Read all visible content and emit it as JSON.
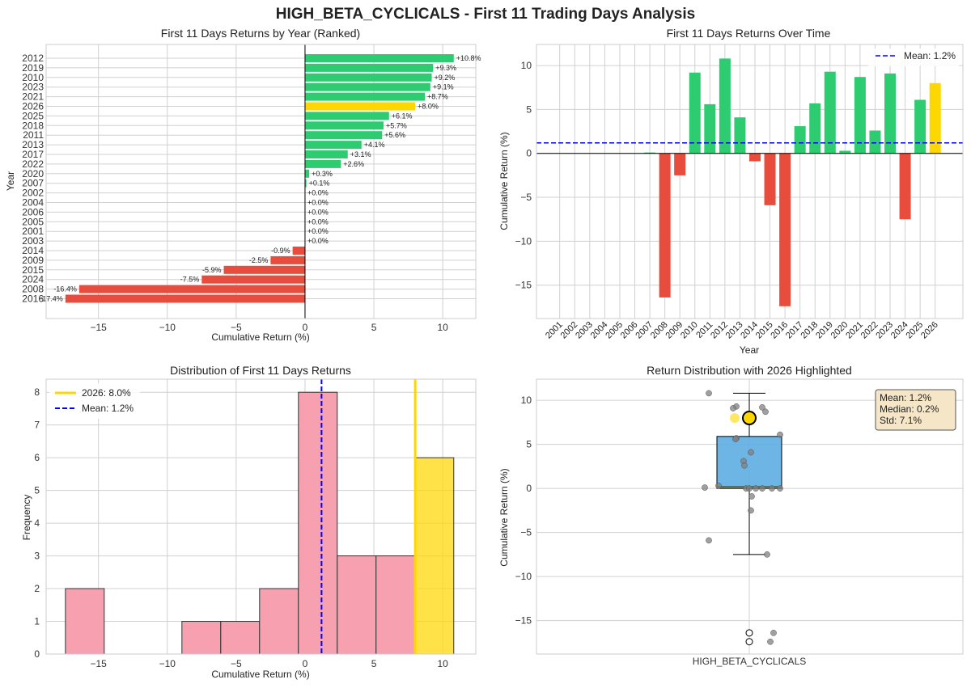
{
  "title": "HIGH_BETA_CYCLICALS - First 11 Trading Days Analysis",
  "colors": {
    "positive": "#2ecc71",
    "negative": "#e74c3c",
    "highlight": "#ffd700",
    "mean_line": "#0000ff",
    "hist_bar": "#f7a0b0",
    "box": "#5dade2",
    "scatter": "#808080",
    "grid": "#d0d0d0"
  },
  "chart_data": [
    {
      "type": "bar",
      "orientation": "horizontal",
      "title": "First 11 Days Returns by Year (Ranked)",
      "xlabel": "Cumulative Return (%)",
      "ylabel": "Year",
      "xlim": [
        -18.8,
        12.4
      ],
      "xticks": [
        -15,
        -10,
        -5,
        0,
        5,
        10
      ],
      "highlight_year": "2026",
      "categories": [
        "2012",
        "2019",
        "2010",
        "2023",
        "2021",
        "2026",
        "2025",
        "2018",
        "2011",
        "2013",
        "2017",
        "2022",
        "2020",
        "2007",
        "2002",
        "2004",
        "2006",
        "2005",
        "2001",
        "2003",
        "2014",
        "2009",
        "2015",
        "2024",
        "2008",
        "2016"
      ],
      "values": [
        10.8,
        9.3,
        9.2,
        9.1,
        8.7,
        8.0,
        6.1,
        5.7,
        5.6,
        4.1,
        3.1,
        2.6,
        0.3,
        0.1,
        0.0,
        0.0,
        0.0,
        0.0,
        0.0,
        0.0,
        -0.9,
        -2.5,
        -5.9,
        -7.5,
        -16.4,
        -17.4
      ],
      "labels": [
        "+10.8%",
        "+9.3%",
        "+9.2%",
        "+9.1%",
        "+8.7%",
        "+8.0%",
        "+6.1%",
        "+5.7%",
        "+5.6%",
        "+4.1%",
        "+3.1%",
        "+2.6%",
        "+0.3%",
        "+0.1%",
        "+0.0%",
        "+0.0%",
        "+0.0%",
        "+0.0%",
        "+0.0%",
        "+0.0%",
        "-0.9%",
        "-2.5%",
        "-5.9%",
        "-7.5%",
        "-16.4%",
        "-17.4%"
      ]
    },
    {
      "type": "bar",
      "title": "First 11 Days Returns Over Time",
      "xlabel": "Year",
      "ylabel": "Cumulative Return (%)",
      "ylim": [
        -18.8,
        12.4
      ],
      "yticks": [
        -15,
        -10,
        -5,
        0,
        5,
        10
      ],
      "mean": 1.2,
      "legend": [
        "Mean: 1.2%"
      ],
      "highlight_year": "2026",
      "categories": [
        "2001",
        "2002",
        "2003",
        "2004",
        "2005",
        "2006",
        "2007",
        "2008",
        "2009",
        "2010",
        "2011",
        "2012",
        "2013",
        "2014",
        "2015",
        "2016",
        "2017",
        "2018",
        "2019",
        "2020",
        "2021",
        "2022",
        "2023",
        "2024",
        "2025",
        "2026"
      ],
      "values": [
        0.0,
        0.0,
        0.0,
        0.0,
        0.0,
        0.0,
        0.1,
        -16.4,
        -2.5,
        9.2,
        5.6,
        10.8,
        4.1,
        -0.9,
        -5.9,
        -17.4,
        3.1,
        5.7,
        9.3,
        0.3,
        8.7,
        2.6,
        9.1,
        -7.5,
        6.1,
        8.0
      ]
    },
    {
      "type": "histogram",
      "title": "Distribution of First 11 Days Returns",
      "xlabel": "Cumulative Return (%)",
      "ylabel": "Frequency",
      "xlim": [
        -18.8,
        12.4
      ],
      "ylim": [
        0,
        8.4
      ],
      "xticks": [
        -15,
        -10,
        -5,
        0,
        5,
        10
      ],
      "yticks": [
        0,
        1,
        2,
        3,
        4,
        5,
        6,
        7,
        8
      ],
      "bin_edges": [
        -17.4,
        -14.58,
        -11.76,
        -8.94,
        -6.12,
        -3.3,
        -0.48,
        2.34,
        5.16,
        7.98,
        10.8
      ],
      "counts": [
        2,
        0,
        0,
        1,
        1,
        2,
        8,
        3,
        3,
        6
      ],
      "highlight_bin": 9,
      "highlight_value": 8.0,
      "mean": 1.2,
      "legend": [
        "2026: 8.0%",
        "Mean: 1.2%"
      ]
    },
    {
      "type": "box",
      "title": "Return Distribution with 2026 Highlighted",
      "xlabel": "HIGH_BETA_CYCLICALS",
      "ylabel": "Cumulative Return (%)",
      "ylim": [
        -18.8,
        12.4
      ],
      "yticks": [
        -15,
        -10,
        -5,
        0,
        5,
        10
      ],
      "q1": 0.0,
      "median": 0.2,
      "q3": 5.9,
      "whisker_low": -7.5,
      "whisker_high": 10.8,
      "outliers": [
        -16.4,
        -17.4
      ],
      "points": [
        10.8,
        9.3,
        9.2,
        9.1,
        8.7,
        6.1,
        5.7,
        5.6,
        4.1,
        3.1,
        2.6,
        0.3,
        0.1,
        0.0,
        0.0,
        0.0,
        0.0,
        0.0,
        0.0,
        -0.9,
        -2.5,
        -5.9,
        -7.5,
        -16.4,
        -17.4
      ],
      "highlight_value": 8.0,
      "stats": [
        "Mean: 1.2%",
        "Median: 0.2%",
        "Std: 7.1%"
      ]
    }
  ]
}
